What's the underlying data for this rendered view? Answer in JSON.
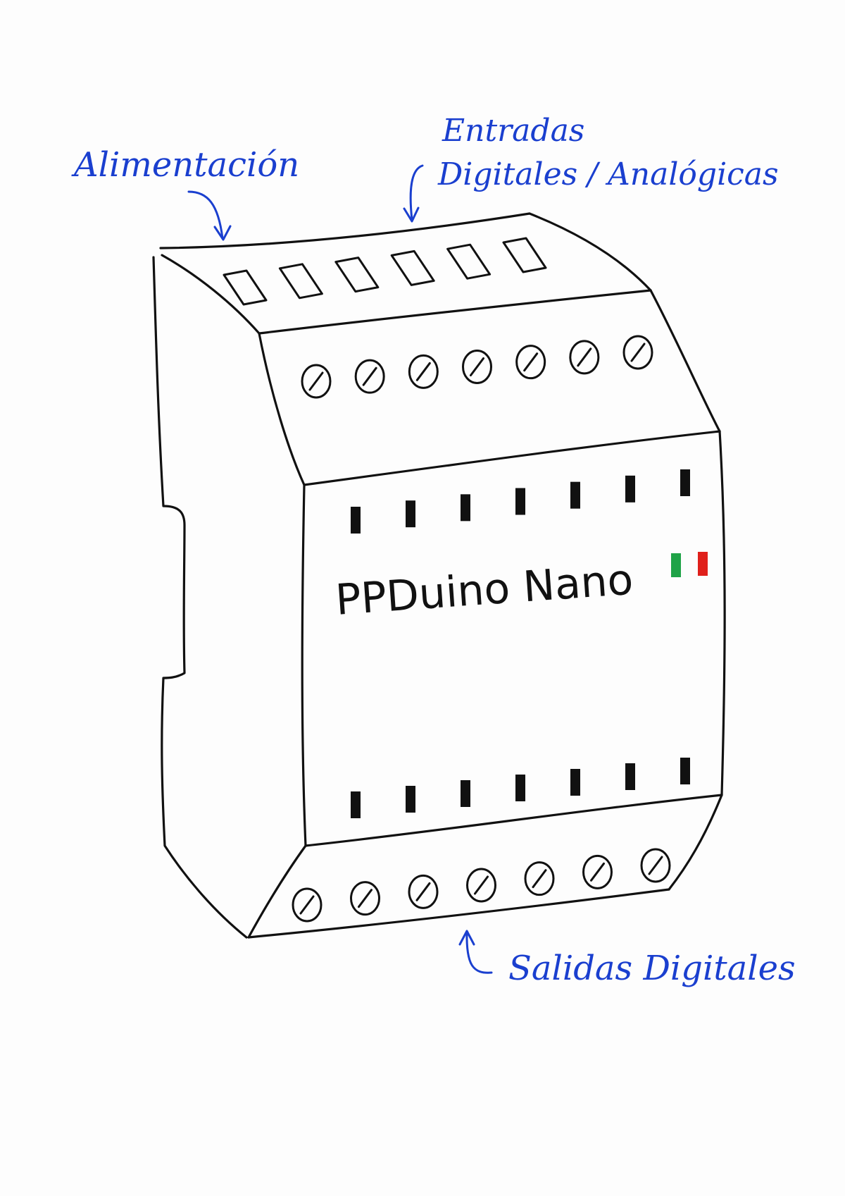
{
  "labels": {
    "power": "Alimentación",
    "inputs_line1": "Entradas",
    "inputs_line2": "Digitales / Analógicas",
    "outputs": "Salidas Digitales",
    "device_name": "PPDuino Nano"
  },
  "colors": {
    "annotation": "#1a3fcf",
    "ink": "#111111",
    "flag_green": "#1fa347",
    "flag_red": "#e0201b"
  },
  "components": {
    "top_slots": 6,
    "input_terminals": 7,
    "top_leds": 7,
    "bottom_leds": 7,
    "output_terminals": 7
  }
}
